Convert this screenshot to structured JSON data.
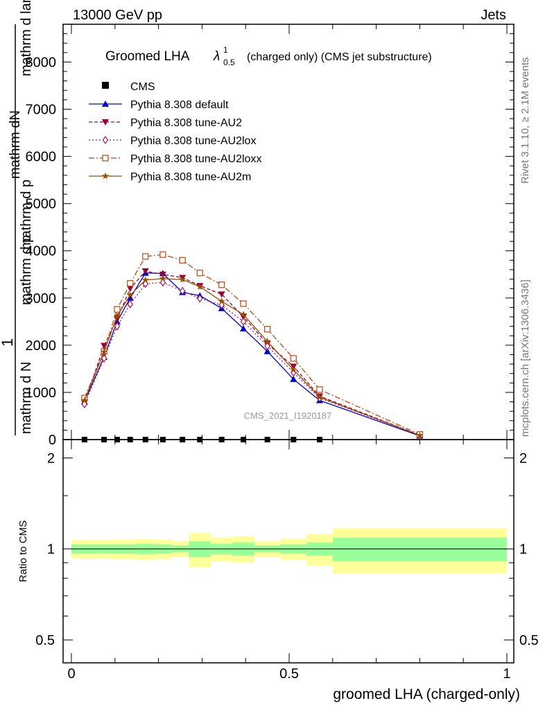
{
  "header": {
    "left": "13000 GeV pp",
    "right": "Jets"
  },
  "side_labels": {
    "rivet": "Rivet 3.1.10, ≥ 2.1M events",
    "mcplots": "mcplots.cern.ch [arXiv:1306.3436]"
  },
  "main_ylabel": {
    "numerator": "mathrm dN",
    "denominator_a": "mathrm d p",
    "denominator_b": "mathrm d lambda",
    "one": "1",
    "one_den": "mathrm d N"
  },
  "chart_data": {
    "type": "line",
    "title_main": "Groomed LHA",
    "title_lambda": "λ",
    "title_sup": "1",
    "title_sub": "0.5",
    "title_rest": "(charged only) (CMS jet substructure)",
    "watermark": "CMS_2021_I1920187",
    "xlabel": "groomed LHA (charged-only)",
    "ratio_ylabel": "Ratio to CMS",
    "xlim": [
      0,
      1
    ],
    "ylim_main": [
      0,
      8800
    ],
    "ylim_ratio": [
      0.42,
      2.3
    ],
    "x_ticks": [
      "0",
      "0.5",
      "1"
    ],
    "y_ticks_main": [
      "0",
      "1000",
      "2000",
      "3000",
      "4000",
      "5000",
      "6000",
      "7000",
      "8000"
    ],
    "y_ticks_ratio": [
      "0.5",
      "1",
      "2"
    ],
    "x": [
      0.03,
      0.075,
      0.105,
      0.135,
      0.17,
      0.21,
      0.255,
      0.295,
      0.345,
      0.395,
      0.45,
      0.51,
      0.57,
      0.8
    ],
    "cms": [
      0,
      0,
      0,
      0,
      0,
      0,
      0,
      0,
      0,
      0,
      0,
      0,
      0
    ],
    "cms_x": [
      0.03,
      0.075,
      0.105,
      0.135,
      0.17,
      0.21,
      0.255,
      0.295,
      0.345,
      0.395,
      0.45,
      0.51,
      0.57
    ],
    "series": [
      {
        "name": "Pythia 8.308 default",
        "marker": "triangle-up",
        "color": "#0000cc",
        "dash": "",
        "values": [
          800,
          1750,
          2500,
          3000,
          3530,
          3520,
          3120,
          3050,
          2780,
          2350,
          1870,
          1280,
          830,
          80
        ]
      },
      {
        "name": "Pythia 8.308 tune-AU2",
        "marker": "triangle-down",
        "color": "#990033",
        "dash": "5,3",
        "values": [
          780,
          1990,
          2560,
          3200,
          3570,
          3500,
          3430,
          3260,
          3080,
          2600,
          2030,
          1550,
          920,
          95
        ]
      },
      {
        "name": "Pythia 8.308 tune-AU2lox",
        "marker": "diamond",
        "color": "#aa1155",
        "dash": "2,3",
        "values": [
          750,
          1720,
          2400,
          2870,
          3300,
          3330,
          3150,
          2990,
          2850,
          2500,
          1980,
          1420,
          880,
          90
        ]
      },
      {
        "name": "Pythia 8.308 tune-AU2loxx",
        "marker": "square-open",
        "color": "#bb4411",
        "dash": "8,3,2,3",
        "values": [
          880,
          1870,
          2760,
          3310,
          3880,
          3920,
          3800,
          3530,
          3280,
          2880,
          2340,
          1720,
          1060,
          110
        ]
      },
      {
        "name": "Pythia 8.308 tune-AU2m",
        "marker": "star",
        "color": "#994d00",
        "dash": "",
        "values": [
          830,
          1860,
          2620,
          3060,
          3380,
          3410,
          3390,
          3240,
          2930,
          2650,
          2080,
          1480,
          900,
          90
        ]
      }
    ],
    "ratio_bins": [
      {
        "lo": 0.0,
        "hi": 0.06,
        "stat": 0.035,
        "total": 0.07
      },
      {
        "lo": 0.06,
        "hi": 0.09,
        "stat": 0.035,
        "total": 0.07
      },
      {
        "lo": 0.09,
        "hi": 0.12,
        "stat": 0.035,
        "total": 0.075
      },
      {
        "lo": 0.12,
        "hi": 0.15,
        "stat": 0.035,
        "total": 0.075
      },
      {
        "lo": 0.15,
        "hi": 0.19,
        "stat": 0.04,
        "total": 0.08
      },
      {
        "lo": 0.19,
        "hi": 0.23,
        "stat": 0.035,
        "total": 0.075
      },
      {
        "lo": 0.23,
        "hi": 0.27,
        "stat": 0.025,
        "total": 0.06
      },
      {
        "lo": 0.27,
        "hi": 0.32,
        "stat": 0.06,
        "total": 0.13
      },
      {
        "lo": 0.32,
        "hi": 0.37,
        "stat": 0.04,
        "total": 0.09
      },
      {
        "lo": 0.37,
        "hi": 0.42,
        "stat": 0.05,
        "total": 0.1
      },
      {
        "lo": 0.42,
        "hi": 0.48,
        "stat": 0.025,
        "total": 0.06
      },
      {
        "lo": 0.48,
        "hi": 0.54,
        "stat": 0.035,
        "total": 0.08
      },
      {
        "lo": 0.54,
        "hi": 0.6,
        "stat": 0.05,
        "total": 0.12
      },
      {
        "lo": 0.6,
        "hi": 1.0,
        "stat": 0.09,
        "total": 0.17
      }
    ],
    "colors": {
      "stat": "#99ff99",
      "total": "#ffff99"
    }
  }
}
